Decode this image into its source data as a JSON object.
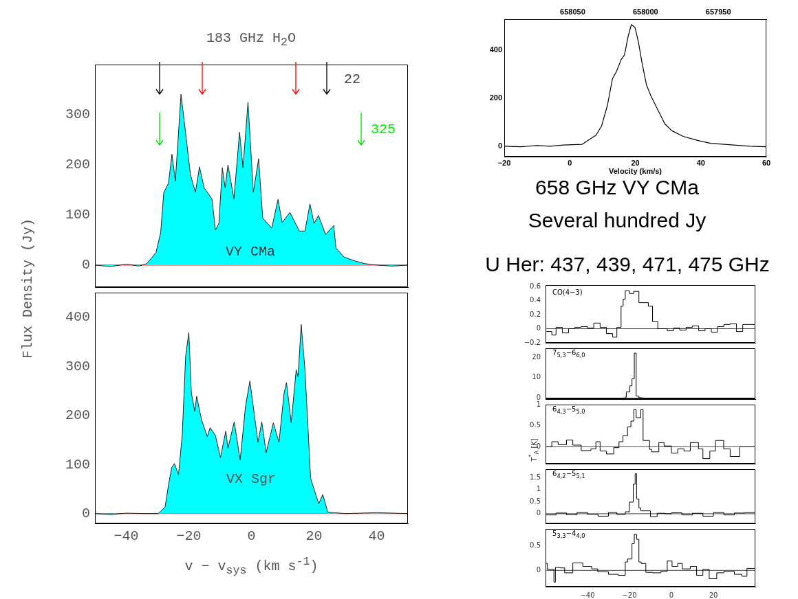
{
  "chart_data": [
    {
      "type": "area",
      "title": "183 GHz H$_{2}$O",
      "ylabel": "Flux Density (Jy)",
      "xlim": [
        -50,
        50
      ],
      "xticks": [
        -40,
        -20,
        0,
        20,
        40
      ],
      "ylim": [
        -44,
        400
      ],
      "yticks": [
        0,
        100,
        200,
        300
      ],
      "tick_labels": "y",
      "series": [
        {
          "color": "#00ffff",
          "x": [
            -50,
            -45,
            -40,
            -36,
            -33.4,
            -30.5,
            -29,
            -28,
            -26.5,
            -25.4,
            -24.3,
            -22.5,
            -21.4,
            -19.5,
            -17.9,
            -16.6,
            -15.1,
            -12.6,
            -11.5,
            -10.4,
            -9.3,
            -8.4,
            -7.5,
            -5.6,
            -3.8,
            -2.7,
            -1.1,
            0.6,
            2.3,
            3.6,
            6.5,
            8.5,
            9.8,
            12.3,
            15.3,
            17.1,
            18.7,
            20,
            21.4,
            23.7,
            26.3,
            27,
            29.6,
            33.2,
            36.1,
            40,
            45,
            50
          ],
          "values": [
            0,
            -3,
            2,
            -2,
            3,
            25,
            65,
            145,
            163,
            221,
            168,
            341,
            283,
            181,
            145,
            196,
            154,
            132,
            70,
            83,
            194,
            154,
            200,
            132,
            265,
            194,
            325,
            145,
            212,
            94,
            74,
            131,
            85,
            105,
            68,
            68,
            122,
            83,
            99,
            61,
            79,
            34,
            16,
            8,
            3,
            0,
            -2,
            0
          ]
        }
      ],
      "ref_lines": [
        {
          "axis": "y",
          "value": 0,
          "color": "#ff0000"
        }
      ],
      "annotations": [
        "22",
        "325",
        "VY CMa"
      ]
    },
    {
      "type": "area",
      "xlabel": "v − v$_{sys}$ (km s$^{-1}$)",
      "xlim": [
        -50,
        50
      ],
      "xticks": [
        -40,
        -20,
        0,
        20,
        40
      ],
      "ylim": [
        -20,
        450
      ],
      "yticks": [
        0,
        100,
        200,
        300,
        400
      ],
      "series": [
        {
          "color": "#00ffff",
          "x": [
            -50,
            -45,
            -40,
            -35,
            -29.8,
            -27.6,
            -26.5,
            -25.5,
            -24.6,
            -23.3,
            -22.1,
            -21,
            -20,
            -19.2,
            -18.1,
            -17.5,
            -15.9,
            -14.1,
            -13.2,
            -11.5,
            -9.9,
            -8.2,
            -7.5,
            -5.5,
            -3.6,
            -1.9,
            -0.5,
            2.1,
            3.3,
            4.7,
            6.1,
            7,
            8.8,
            10.4,
            11.2,
            12.7,
            14.3,
            14.9,
            15.9,
            17.1,
            18.9,
            21.5,
            22.8,
            24.4,
            30,
            40,
            50
          ],
          "values": [
            0,
            -2,
            1,
            0,
            0,
            13,
            58,
            93,
            102,
            79,
            161,
            322,
            369,
            246,
            208,
            239,
            190,
            157,
            175,
            159,
            114,
            168,
            133,
            187,
            109,
            218,
            270,
            145,
            187,
            124,
            161,
            185,
            145,
            244,
            267,
            185,
            293,
            279,
            385,
            293,
            72,
            20,
            39,
            3,
            0,
            2,
            0
          ]
        }
      ],
      "ref_lines": [
        {
          "axis": "y",
          "value": 0,
          "color": "#ff0000"
        }
      ],
      "annotations": [
        "VX Sgr"
      ]
    },
    {
      "type": "line",
      "xlabel": "Velocity (km/s)",
      "xlim": [
        -20,
        60
      ],
      "xticks": [
        -20,
        0,
        20,
        40,
        60
      ],
      "ylim": [
        -43,
        527
      ],
      "yticks": [
        0,
        200,
        400
      ],
      "x2lim": [
        658097,
        657917
      ],
      "x2ticks": [
        658050,
        658000,
        657950
      ],
      "series": [
        {
          "color": "#000000",
          "x": [
            -20,
            -15,
            -10,
            -6,
            -2,
            3.8,
            8,
            9.7,
            11.5,
            13,
            14.3,
            15.7,
            16.7,
            17.8,
            18.8,
            19.9,
            20.9,
            22,
            23.4,
            24.8,
            26.9,
            29,
            31.1,
            34.6,
            38.8,
            43,
            50,
            55,
            60
          ],
          "values": [
            0,
            -2,
            3,
            0,
            5,
            8,
            46,
            84,
            170,
            279,
            312,
            360,
            379,
            455,
            505,
            493,
            436,
            350,
            255,
            208,
            150,
            93,
            65,
            41,
            25,
            12,
            5,
            0,
            -2
          ]
        }
      ],
      "annotations": [
        "658 GHz VY CMa",
        "Several hundred Jy",
        "U Her: 437, 439, 471, 475 GHz"
      ]
    },
    {
      "type": "step",
      "xlim": [
        -60,
        40
      ],
      "xticks": [
        -40,
        -20,
        0,
        20
      ],
      "ylim": [
        -0.2,
        0.62
      ],
      "yticks": [
        -0.2,
        0,
        0.2,
        0.4,
        0.6
      ],
      "tick_labels": "y",
      "series": [
        {
          "color": "#000000",
          "x": [
            -60,
            -57,
            -55,
            -52,
            -49,
            -46,
            -43,
            -40,
            -37,
            -34,
            -31,
            -28,
            -26,
            -24,
            -23,
            -22,
            -20,
            -18,
            -15.5,
            -11,
            -9,
            -6.5,
            -5,
            -2,
            1,
            4,
            7,
            10,
            13,
            16,
            19,
            22,
            25,
            28,
            31,
            34,
            37,
            40
          ],
          "values": [
            0,
            -0.04,
            -0.09,
            0.02,
            -0.06,
            0,
            0.02,
            0.03,
            0.01,
            0.08,
            0.02,
            -0.07,
            -0.12,
            0.02,
            0.32,
            0.42,
            0.54,
            0.5,
            0.53,
            0.37,
            0.32,
            0.1,
            0,
            0,
            -0.03,
            0.01,
            -0.02,
            0.02,
            0.04,
            -0.03,
            0,
            -0.05,
            0.03,
            0.06,
            0.07,
            -0.04,
            0.06,
            0.06
          ]
        }
      ],
      "ref_lines": [
        {
          "axis": "y",
          "value": 0
        }
      ],
      "annotations": [
        "CO(4−3)"
      ]
    },
    {
      "type": "step",
      "xlim": [
        -60,
        40
      ],
      "xticks": [
        -40,
        -20,
        0,
        20
      ],
      "ylim": [
        -0.5,
        24.4
      ],
      "yticks": [
        0,
        10,
        20
      ],
      "tick_labels": "y",
      "series": [
        {
          "color": "#000000",
          "x": [
            -60,
            -40,
            -22,
            -21.5,
            -19.8,
            -18.8,
            -17.7,
            -16.8,
            -15.5,
            -14.6,
            -13.3,
            0,
            20,
            40
          ],
          "values": [
            0,
            0,
            0,
            0.5,
            3,
            6,
            9.4,
            22,
            1,
            0.2,
            0.1,
            0,
            0,
            0
          ]
        }
      ],
      "ref_lines": [
        {
          "axis": "y",
          "value": 0
        }
      ],
      "annotations": [
        "7$_{5,3}$−6$_{6,0}$"
      ]
    },
    {
      "type": "step",
      "ylabel": "T$^{*}$$_{A}$ [K]",
      "xlim": [
        -60,
        40
      ],
      "xticks": [
        -40,
        -20,
        0,
        20
      ],
      "ylim": [
        -0.4,
        1
      ],
      "yticks": [
        0,
        0.5,
        1
      ],
      "tick_labels": "y",
      "series": [
        {
          "color": "#000000",
          "x": [
            -60,
            -57,
            -54,
            -50,
            -47,
            -43,
            -38.4,
            -36,
            -34,
            -31,
            -27.5,
            -25,
            -23.1,
            -20.9,
            -19.3,
            -17.9,
            -16.8,
            -14.6,
            -13.5,
            -10.4,
            -9.5,
            -6,
            -3.5,
            0,
            3,
            6,
            9,
            12.9,
            15,
            18.3,
            21,
            24.9,
            28,
            32.5,
            35,
            38,
            40
          ],
          "values": [
            -0.08,
            0,
            0.12,
            0.05,
            0.16,
            0.04,
            -0.09,
            -0.05,
            0.12,
            -0.1,
            -0.17,
            -0.02,
            0.12,
            0.26,
            0.47,
            0.61,
            0.88,
            0.69,
            0.88,
            0.15,
            -0.06,
            -0.12,
            0.1,
            0.02,
            -0.15,
            -0.05,
            -0.1,
            0.1,
            -0.05,
            -0.28,
            -0.1,
            0.15,
            -0.05,
            -0.23,
            0,
            0,
            0
          ]
        }
      ],
      "ref_lines": [
        {
          "axis": "y",
          "value": 0
        }
      ],
      "annotations": [
        "6$_{4,3}$−5$_{5,0}$"
      ]
    },
    {
      "type": "step",
      "xlim": [
        -60,
        40
      ],
      "xticks": [
        -40,
        -20,
        0,
        20
      ],
      "ylim": [
        -0.4,
        1.84
      ],
      "yticks": [
        0,
        0.5,
        1,
        1.5
      ],
      "tick_labels": "y",
      "series": [
        {
          "color": "#000000",
          "x": [
            -60,
            -55,
            -50,
            -45,
            -40,
            -35,
            -30,
            -26,
            -22,
            -20,
            -18.2,
            -17.3,
            -16.6,
            -15.5,
            -14.6,
            -10,
            -6.8,
            -3,
            0,
            5,
            10,
            15,
            20,
            25,
            30,
            35,
            40
          ],
          "values": [
            0.02,
            -0.05,
            0.03,
            -0.04,
            0.05,
            -0.02,
            -0.1,
            0.05,
            -0.03,
            0.08,
            0.48,
            1.22,
            1.65,
            0.61,
            0.24,
            0.12,
            -0.12,
            0.02,
            0,
            0.04,
            -0.05,
            0.02,
            -0.1,
            0.05,
            -0.05,
            0.03,
            0.05
          ]
        }
      ],
      "ref_lines": [
        {
          "axis": "y",
          "value": 0
        }
      ],
      "annotations": [
        "6$_{4,2}$−5$_{5,1}$"
      ]
    },
    {
      "type": "step",
      "xlim": [
        -60,
        40
      ],
      "xticks": [
        -40,
        -20,
        0,
        20
      ],
      "ylim": [
        -0.33,
        0.84
      ],
      "yticks": [
        0,
        0.5
      ],
      "series": [
        {
          "color": "#000000",
          "x": [
            -60,
            -59.1,
            -56,
            -55.3,
            -53,
            -50.9,
            -47,
            -42.2,
            -38,
            -35.1,
            -30,
            -25.3,
            -22,
            -20.9,
            -18.8,
            -17.7,
            -16.6,
            -15.5,
            -14.4,
            -12.2,
            -8.9,
            -5,
            -2,
            0.3,
            3,
            5.2,
            9,
            12,
            15,
            18,
            21.6,
            25,
            30,
            33.6,
            36,
            38.5,
            40
          ],
          "values": [
            0.1,
            0.14,
            0.02,
            -0.24,
            0.06,
            0.05,
            -0.05,
            0.15,
            0.08,
            0.03,
            -0.03,
            -0.08,
            -0.1,
            0.17,
            0.23,
            0.54,
            0.73,
            0.63,
            0.17,
            0.14,
            -0.04,
            -0.05,
            -0.02,
            0.19,
            0.08,
            0.14,
            0.03,
            0.08,
            -0.1,
            0.02,
            -0.17,
            -0.05,
            -0.02,
            -0.08,
            -0.12,
            0.04,
            0.04
          ]
        }
      ],
      "ref_lines": [
        {
          "axis": "y",
          "value": 0
        }
      ],
      "annotations": [
        "5$_{3,3}$−4$_{4,0}$"
      ]
    }
  ]
}
